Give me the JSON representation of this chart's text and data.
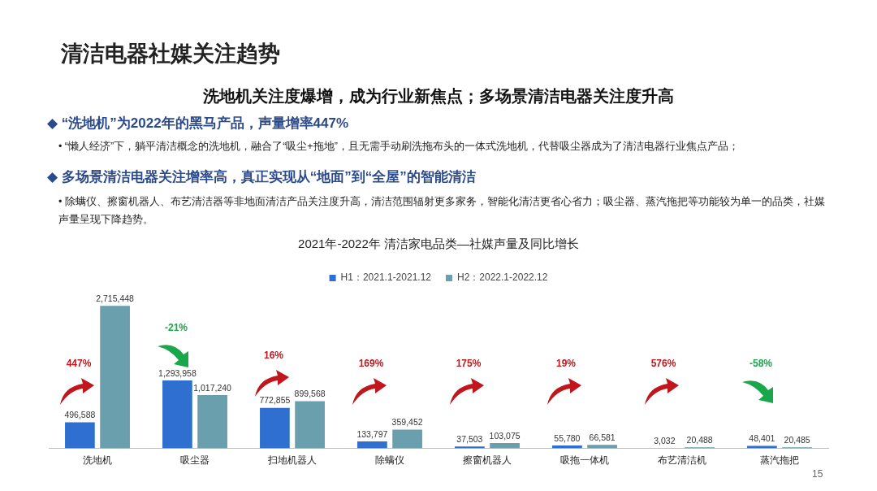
{
  "chart_data": {
    "type": "bar",
    "title": "2021年-2022年 清洁家电品类—社媒声量及同比增长",
    "categories": [
      "洗地机",
      "吸尘器",
      "扫地机器人",
      "除螨仪",
      "擦窗机器人",
      "吸拖一体机",
      "布艺清洁机",
      "蒸汽拖把"
    ],
    "series": [
      {
        "name": "H1：2021.1-2021.12",
        "color": "#2f6fcf",
        "values": [
          496588,
          1293958,
          772855,
          133797,
          37503,
          55780,
          3032,
          48401
        ],
        "value_labels": [
          "496,588",
          "1,293,958",
          "772,855",
          "133,797",
          "37,503",
          "55,780",
          "3,032",
          "48,401"
        ]
      },
      {
        "name": "H2：2022.1-2022.12",
        "color": "#6a9fae",
        "values": [
          2715448,
          1017240,
          899568,
          359452,
          103075,
          66581,
          20488,
          20485
        ],
        "value_labels": [
          "2,715,448",
          "1,017,240",
          "899,568",
          "359,452",
          "103,075",
          "66,581",
          "20,488",
          "20,485"
        ]
      }
    ],
    "legend": "top",
    "grid": false,
    "tick_labels": "x",
    "annotations": [
      "清洁电器社媒关注趋势",
      "洗地机关注度爆增，成为行业新焦点；多场景清洁电器关注度升高",
      "◆ “洗地机”为2022年的黑马产品，声量增率447%",
      "•  “懒人经济”下，躺平清洁概念的洗地机，融合了“吸尘+拖地”，且无需手动刷洗拖布头的一体式洗地机，代替吸尘器成为了清洁电器行业焦点产品；",
      "◆ 多场景清洁电器关注增率高，真正实现从“地面”到“全屋”的智能清洁",
      "•  除螨仪、擦窗机器人、布艺清洁器等非地面清洁产品关注度升高，清洁范围辐射更多家务，智能化清洁更省心省力；吸尘器、蒸汽拖把等功能较为单一的品类，社媒声量呈现下降趋势。",
      "15",
      "447%",
      "-21%",
      "16%",
      "169%",
      "175%",
      "19%",
      "576%",
      "-58%"
    ]
  }
}
